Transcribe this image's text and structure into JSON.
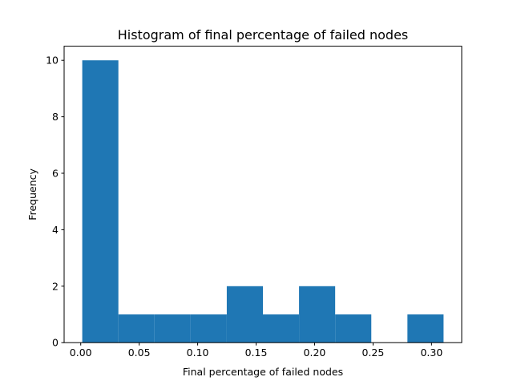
{
  "chart_data": {
    "type": "bar",
    "title": "Histogram of final percentage of failed nodes",
    "xlabel": "Final percentage of failed nodes",
    "ylabel": "Frequency",
    "bin_edges": [
      0.0013,
      0.0322,
      0.0631,
      0.094,
      0.1249,
      0.1558,
      0.1867,
      0.2176,
      0.2485,
      0.2794,
      0.3103
    ],
    "values": [
      10,
      1,
      1,
      1,
      2,
      1,
      2,
      1,
      0,
      1
    ],
    "xlim": [
      -0.0142,
      0.3258
    ],
    "ylim": [
      0,
      10.5
    ],
    "xticks": [
      0.0,
      0.05,
      0.1,
      0.15,
      0.2,
      0.25,
      0.3
    ],
    "xtick_labels": [
      "0.00",
      "0.05",
      "0.10",
      "0.15",
      "0.20",
      "0.25",
      "0.30"
    ],
    "yticks": [
      0,
      2,
      4,
      6,
      8,
      10
    ],
    "ytick_labels": [
      "0",
      "2",
      "4",
      "6",
      "8",
      "10"
    ],
    "bar_color": "#1f77b4",
    "grid": false,
    "legend": "none"
  }
}
